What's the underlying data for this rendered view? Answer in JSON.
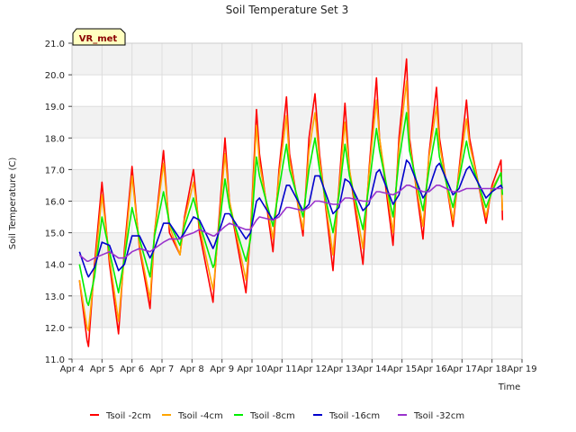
{
  "chart_data": {
    "type": "line",
    "title": "Soil Temperature Set 3",
    "xlabel": "Time",
    "ylabel": "Soil Temperature (C)",
    "badge": "VR_met",
    "xlim": [
      4,
      19
    ],
    "ylim": [
      11.0,
      21.0
    ],
    "x_ticks": [
      "Apr 4",
      "Apr 5",
      "Apr 6",
      "Apr 7",
      "Apr 8",
      "Apr 9",
      "Apr 10",
      "Apr 11",
      "Apr 12",
      "Apr 13",
      "Apr 14",
      "Apr 15",
      "Apr 16",
      "Apr 17",
      "Apr 18",
      "Apr 19"
    ],
    "y_ticks": [
      "11.0",
      "12.0",
      "13.0",
      "14.0",
      "15.0",
      "16.0",
      "17.0",
      "18.0",
      "19.0",
      "20.0",
      "21.0"
    ],
    "grid": true,
    "legend_position": "bottom",
    "x": [
      4.25,
      4.5,
      4.55,
      4.75,
      5.0,
      5.25,
      5.55,
      5.75,
      6.0,
      6.25,
      6.6,
      6.75,
      7.05,
      7.25,
      7.6,
      7.75,
      8.05,
      8.25,
      8.7,
      8.75,
      9.1,
      9.25,
      9.8,
      9.95,
      10.15,
      10.25,
      10.7,
      10.9,
      11.15,
      11.25,
      11.7,
      11.9,
      12.1,
      12.25,
      12.7,
      12.9,
      13.1,
      13.25,
      13.7,
      13.9,
      14.15,
      14.25,
      14.7,
      14.9,
      15.15,
      15.25,
      15.7,
      15.9,
      16.15,
      16.25,
      16.7,
      16.9,
      17.15,
      17.25,
      17.8,
      18.0,
      18.3,
      18.35
    ],
    "series": [
      {
        "name": "Tsoil -2cm",
        "color": "#ff0000",
        "values": [
          13.5,
          11.6,
          11.4,
          14.0,
          16.6,
          14.0,
          11.8,
          14.5,
          17.1,
          14.5,
          12.6,
          15.0,
          17.6,
          15.0,
          14.3,
          15.5,
          17.0,
          15.0,
          12.8,
          13.5,
          18.0,
          16.0,
          13.1,
          15.0,
          18.9,
          17.5,
          14.4,
          17.0,
          19.3,
          17.5,
          14.9,
          18.0,
          19.4,
          17.5,
          13.8,
          16.5,
          19.1,
          17.0,
          14.0,
          17.0,
          19.9,
          18.0,
          14.6,
          18.0,
          20.5,
          18.0,
          14.8,
          17.5,
          19.6,
          18.0,
          15.2,
          17.0,
          19.2,
          18.0,
          15.3,
          16.5,
          17.3,
          15.4
        ]
      },
      {
        "name": "Tsoil -4cm",
        "color": "#ffa500",
        "values": [
          13.5,
          12.0,
          11.9,
          13.8,
          16.2,
          14.2,
          12.2,
          14.3,
          16.8,
          14.6,
          12.9,
          15.0,
          17.2,
          15.2,
          14.3,
          15.4,
          16.6,
          15.2,
          13.2,
          13.6,
          17.5,
          16.0,
          13.5,
          15.0,
          18.4,
          17.2,
          14.8,
          16.8,
          18.7,
          17.3,
          15.1,
          17.6,
          18.8,
          17.3,
          14.3,
          16.4,
          18.5,
          17.0,
          14.5,
          16.9,
          19.2,
          18.0,
          15.0,
          17.7,
          19.8,
          17.8,
          15.2,
          17.4,
          19.0,
          17.8,
          15.4,
          16.9,
          18.6,
          17.8,
          15.5,
          16.4,
          16.9,
          15.7
        ]
      },
      {
        "name": "Tsoil -8cm",
        "color": "#00ee00",
        "values": [
          14.0,
          12.8,
          12.7,
          13.6,
          15.5,
          14.4,
          13.1,
          14.2,
          15.8,
          14.8,
          13.6,
          14.9,
          16.3,
          15.3,
          14.6,
          15.2,
          16.1,
          15.3,
          13.9,
          14.0,
          16.7,
          15.8,
          14.1,
          14.8,
          17.4,
          16.8,
          15.2,
          16.4,
          17.8,
          17.0,
          15.5,
          17.0,
          18.0,
          17.0,
          15.0,
          16.2,
          17.8,
          16.8,
          15.1,
          16.5,
          18.3,
          17.6,
          15.5,
          17.3,
          18.8,
          17.6,
          15.7,
          17.0,
          18.3,
          17.4,
          15.8,
          16.7,
          17.9,
          17.4,
          15.8,
          16.3,
          16.9,
          16.2
        ]
      },
      {
        "name": "Tsoil -16cm",
        "color": "#0000cc",
        "values": [
          14.4,
          13.7,
          13.6,
          13.9,
          14.7,
          14.6,
          13.8,
          14.0,
          14.9,
          14.9,
          14.2,
          14.5,
          15.3,
          15.3,
          14.8,
          15.0,
          15.5,
          15.4,
          14.5,
          14.6,
          15.6,
          15.6,
          14.8,
          15.0,
          16.0,
          16.1,
          15.4,
          15.6,
          16.5,
          16.5,
          15.7,
          15.9,
          16.8,
          16.8,
          15.6,
          15.8,
          16.7,
          16.6,
          15.7,
          15.9,
          16.9,
          17.0,
          15.9,
          16.2,
          17.3,
          17.2,
          16.1,
          16.4,
          17.1,
          17.2,
          16.2,
          16.4,
          17.0,
          17.1,
          16.1,
          16.3,
          16.5,
          16.4
        ]
      },
      {
        "name": "Tsoil -32cm",
        "color": "#9932cc",
        "values": [
          14.3,
          14.1,
          14.1,
          14.2,
          14.3,
          14.4,
          14.2,
          14.2,
          14.4,
          14.5,
          14.4,
          14.5,
          14.7,
          14.8,
          14.8,
          14.9,
          15.0,
          15.1,
          14.9,
          14.9,
          15.2,
          15.3,
          15.1,
          15.1,
          15.4,
          15.5,
          15.4,
          15.5,
          15.8,
          15.8,
          15.7,
          15.8,
          16.0,
          16.0,
          15.9,
          15.9,
          16.1,
          16.1,
          16.0,
          16.0,
          16.3,
          16.3,
          16.2,
          16.3,
          16.5,
          16.5,
          16.3,
          16.3,
          16.5,
          16.5,
          16.3,
          16.3,
          16.4,
          16.4,
          16.4,
          16.4,
          16.4,
          16.4
        ]
      }
    ]
  }
}
